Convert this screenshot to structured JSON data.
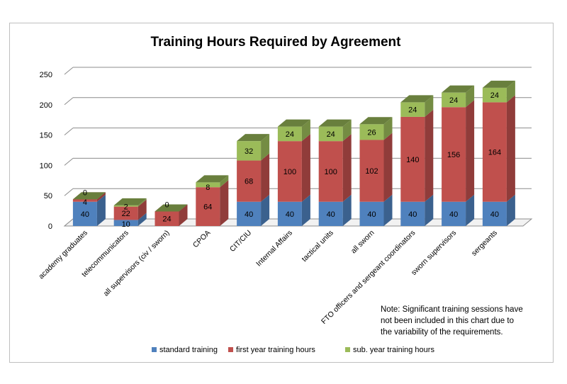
{
  "chart_data": {
    "type": "bar",
    "stacked": true,
    "three_d": true,
    "title": "Training Hours Required by Agreement",
    "categories": [
      "academy graduates",
      "telecommunicators",
      "all supervisors (civ / sworn)",
      "CPOA",
      "CIT/CIU",
      "Internal Affairs",
      "tactical units",
      "all sworn",
      "FTO officers and sergeant coordinators",
      "sworn supervisors",
      "sergeants"
    ],
    "series": [
      {
        "name": "standard training",
        "color": "#4f81bd",
        "values": [
          40,
          10,
          0,
          0,
          40,
          40,
          40,
          40,
          40,
          40,
          40
        ],
        "labels": [
          "40",
          "10",
          "",
          "",
          "40",
          "40",
          "40",
          "40",
          "40",
          "40",
          "40"
        ]
      },
      {
        "name": "first year training hours",
        "color": "#c0504d",
        "values": [
          4,
          22,
          24,
          64,
          68,
          100,
          100,
          102,
          140,
          156,
          164
        ],
        "labels": [
          "4",
          "22",
          "24",
          "64",
          "68",
          "100",
          "100",
          "102",
          "140",
          "156",
          "164"
        ]
      },
      {
        "name": "sub. year training hours",
        "color": "#9bbb59",
        "values": [
          0,
          2,
          0,
          8,
          32,
          24,
          24,
          26,
          24,
          24,
          24
        ],
        "labels": [
          "0",
          "2",
          "0",
          "8",
          "32",
          "24",
          "24",
          "26",
          "24",
          "24",
          "24"
        ]
      }
    ],
    "ylim": [
      0,
      250
    ],
    "yticks": [
      "0",
      "50",
      "100",
      "150",
      "200",
      "250"
    ],
    "grid": true,
    "legend": "bottom"
  },
  "note": [
    "Note:  Significant training sessions have",
    "not been included in this chart due to",
    "the variability of the requirements."
  ]
}
